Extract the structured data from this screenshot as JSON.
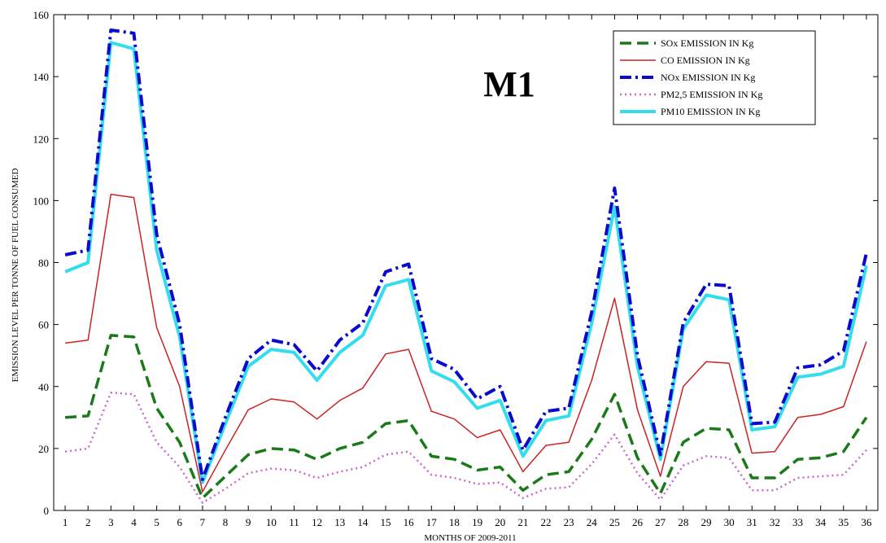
{
  "chart_data": {
    "type": "line",
    "title": "M1",
    "xlabel": "MONTHS OF 2009-2011",
    "ylabel": "EMISSION LEVEL PER TONNE OF FUEL CONSUMED",
    "x": [
      1,
      2,
      3,
      4,
      5,
      6,
      7,
      8,
      9,
      10,
      11,
      12,
      13,
      14,
      15,
      16,
      17,
      18,
      19,
      20,
      21,
      22,
      23,
      24,
      25,
      26,
      27,
      28,
      29,
      30,
      31,
      32,
      33,
      34,
      35,
      36
    ],
    "xlim": [
      0.5,
      36.5
    ],
    "ylim": [
      0,
      160
    ],
    "yticks": [
      0,
      20,
      40,
      60,
      80,
      100,
      120,
      140,
      160
    ],
    "grid": false,
    "legend_position": "top-right",
    "series": [
      {
        "name": "SOx EMISSION IN Kg",
        "color": "#1a7a1a",
        "style": "dashed",
        "values": [
          30,
          30.5,
          56.5,
          56,
          33,
          22,
          4,
          11,
          18,
          20,
          19.5,
          16.5,
          20,
          22,
          28,
          29,
          17.5,
          16.5,
          13,
          14,
          6.5,
          11.5,
          12.5,
          23,
          37.5,
          17,
          5.5,
          22,
          26.5,
          26,
          10.5,
          10.5,
          16.5,
          17,
          19,
          30
        ]
      },
      {
        "name": "CO EMISSION IN Kg",
        "color": "#cc2222",
        "style": "solid",
        "values": [
          54,
          55,
          102,
          101,
          59,
          40,
          6,
          19.5,
          32.5,
          36,
          35,
          29.5,
          35.5,
          39.5,
          50.5,
          52,
          32,
          29.5,
          23.5,
          26,
          12.5,
          21,
          22,
          42,
          68.5,
          32.5,
          11,
          40,
          48,
          47.5,
          18.5,
          19,
          30,
          31,
          33.5,
          54.5
        ]
      },
      {
        "name": "NOx EMISSION IN Kg",
        "color": "#0a0acc",
        "style": "dashdot",
        "values": [
          82.5,
          84,
          155,
          154,
          89,
          60,
          10,
          30,
          49,
          55,
          53.5,
          45,
          55,
          60.5,
          77,
          79.5,
          49,
          45.5,
          36,
          40,
          19.5,
          32,
          33,
          64,
          104,
          50,
          18,
          60.5,
          73,
          72.5,
          28,
          28.5,
          46,
          47,
          51.5,
          83
        ]
      },
      {
        "name": "PM2,5 EMISSION IN Kg",
        "color": "#cc66cc",
        "style": "dotted",
        "values": [
          19,
          20,
          38,
          37.5,
          22,
          14,
          2.5,
          7,
          12,
          13.5,
          13,
          10.5,
          12.5,
          14,
          18,
          19,
          11.5,
          10.5,
          8.5,
          9,
          4,
          7,
          7.5,
          15,
          24.5,
          12,
          3.5,
          14.5,
          17.5,
          17,
          6.5,
          6.5,
          10.5,
          11,
          11.5,
          19.5
        ]
      },
      {
        "name": "PM10 EMISSION IN Kg",
        "color": "#33ddee",
        "style": "solid",
        "values": [
          77,
          80,
          151,
          149,
          84,
          56,
          9,
          28,
          46.5,
          52,
          51,
          42,
          51,
          56.5,
          72.5,
          74.5,
          45,
          41.5,
          33,
          35.5,
          17.5,
          29,
          30.5,
          60.5,
          98,
          46.5,
          16.5,
          58.5,
          69.5,
          68,
          26,
          27,
          43,
          44,
          46.5,
          79
        ]
      }
    ]
  }
}
